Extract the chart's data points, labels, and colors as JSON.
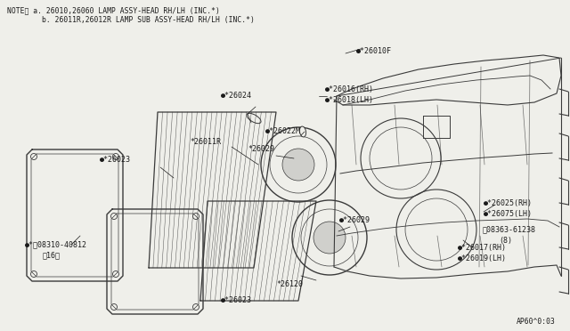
{
  "background_color": "#efefea",
  "line_color": "#3a3a3a",
  "text_color": "#1a1a1a",
  "bg_color": "#efefea",
  "note1": "NOTE） a. 26010,26060 LAMP ASSY-HEAD RH/LH (INC.*)",
  "note2": "        b. 26011R,26012R LAMP SUB ASSY-HEAD RH/LH (INC.*)",
  "ref": "AP60^0:03"
}
